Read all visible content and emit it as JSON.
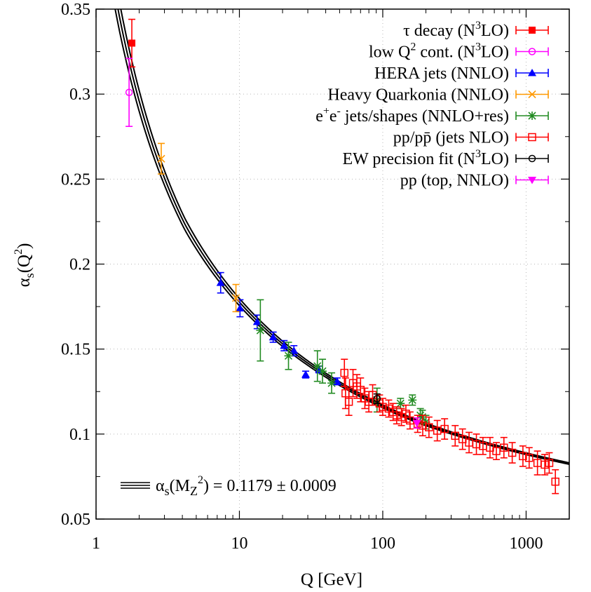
{
  "chart_data": {
    "type": "scatter",
    "title": "",
    "xlabel": "Q [GeV]",
    "ylabel": "αs(Q²)",
    "ylabel_parts": {
      "alpha": "α",
      "sub": "s",
      "arg": "(Q",
      "sup": "2",
      "close": ")"
    },
    "xscale": "log",
    "xlim": [
      1,
      2000
    ],
    "ylim": [
      0.05,
      0.35
    ],
    "grid": true,
    "legend_position": "top-right",
    "x_ticks": [
      1,
      10,
      100,
      1000
    ],
    "x_tick_labels": [
      "1",
      "10",
      "100",
      "1000"
    ],
    "y_ticks": [
      0.05,
      0.1,
      0.15,
      0.2,
      0.25,
      0.3,
      0.35
    ],
    "y_tick_labels": [
      "0.05",
      "0.1",
      "0.15",
      "0.2",
      "0.25",
      "0.3",
      "0.35"
    ],
    "legend_labels": [
      "τ decay (N3LO)",
      "low Q2 cont. (N3LO)",
      "HERA jets (NNLO)",
      "Heavy Quarkonia (NNLO)",
      "e+e- jets/shapes (NNLO+res)",
      "pp/pp̄ (jets NLO)",
      "EW precision fit (N3LO)",
      "pp (top, NNLO)"
    ],
    "fit_annotation": "αs(MZ2) = 0.1179 ± 0.0009",
    "fit_label_parts": {
      "alpha": "α",
      "sub": "s",
      "open": "(M",
      "zsub": "Z",
      "sup": "2",
      "rest": ") = 0.1179 ± 0.0009"
    },
    "fit": {
      "alpha_s_mz": 0.1179,
      "uncertainty": 0.0009,
      "mz": 91.1876
    },
    "series": [
      {
        "name": "τ decay (N3LO)",
        "color": "#ff0000",
        "marker": "filled-square",
        "points": [
          {
            "x": 1.777,
            "y": 0.33,
            "e": 0.014
          }
        ]
      },
      {
        "name": "low Q2 cont. (N3LO)",
        "color": "#ff00ff",
        "marker": "open-circle",
        "points": [
          {
            "x": 1.7,
            "y": 0.301,
            "e": 0.02
          }
        ]
      },
      {
        "name": "HERA jets (NNLO)",
        "color": "#0000ff",
        "marker": "filled-triangle",
        "points": [
          {
            "x": 7.4,
            "y": 0.189,
            "e": 0.006
          },
          {
            "x": 10.1,
            "y": 0.174,
            "e": 0.005
          },
          {
            "x": 13.3,
            "y": 0.166,
            "e": 0.004
          },
          {
            "x": 17.2,
            "y": 0.157,
            "e": 0.003
          },
          {
            "x": 20.5,
            "y": 0.152,
            "e": 0.003
          },
          {
            "x": 24.0,
            "y": 0.149,
            "e": 0.003
          },
          {
            "x": 29.0,
            "y": 0.135,
            "e": 0.002
          },
          {
            "x": 36.0,
            "y": 0.138,
            "e": 0.002
          },
          {
            "x": 48.0,
            "y": 0.131,
            "e": 0.002
          }
        ]
      },
      {
        "name": "Heavy Quarkonia (NNLO)",
        "color": "#ff9900",
        "marker": "cross",
        "points": [
          {
            "x": 2.85,
            "y": 0.262,
            "e": 0.009
          },
          {
            "x": 9.46,
            "y": 0.18,
            "e": 0.008
          }
        ]
      },
      {
        "name": "e+e- jets/shapes (NNLO+res)",
        "color": "#228b22",
        "marker": "star",
        "points": [
          {
            "x": 14.0,
            "y": 0.161,
            "e": 0.018
          },
          {
            "x": 22.0,
            "y": 0.146,
            "e": 0.008
          },
          {
            "x": 35.0,
            "y": 0.14,
            "e": 0.009
          },
          {
            "x": 38.0,
            "y": 0.137,
            "e": 0.007
          },
          {
            "x": 44.0,
            "y": 0.13,
            "e": 0.006
          },
          {
            "x": 91.2,
            "y": 0.12,
            "e": 0.007
          },
          {
            "x": 133.0,
            "y": 0.118,
            "e": 0.003
          },
          {
            "x": 161.0,
            "y": 0.12,
            "e": 0.003
          },
          {
            "x": 183.0,
            "y": 0.111,
            "e": 0.004
          },
          {
            "x": 189.0,
            "y": 0.11,
            "e": 0.004
          },
          {
            "x": 200.0,
            "y": 0.107,
            "e": 0.004
          }
        ]
      },
      {
        "name": "pp/pp̄ (jets NLO)",
        "color": "#ff0000",
        "marker": "open-square",
        "points": [
          {
            "x": 54,
            "y": 0.136,
            "e": 0.008
          },
          {
            "x": 55,
            "y": 0.124,
            "e": 0.009
          },
          {
            "x": 58,
            "y": 0.119,
            "e": 0.008
          },
          {
            "x": 62,
            "y": 0.13,
            "e": 0.008
          },
          {
            "x": 66,
            "y": 0.128,
            "e": 0.007
          },
          {
            "x": 70,
            "y": 0.126,
            "e": 0.007
          },
          {
            "x": 75,
            "y": 0.121,
            "e": 0.006
          },
          {
            "x": 80,
            "y": 0.119,
            "e": 0.006
          },
          {
            "x": 85,
            "y": 0.123,
            "e": 0.006
          },
          {
            "x": 95,
            "y": 0.118,
            "e": 0.005
          },
          {
            "x": 100,
            "y": 0.116,
            "e": 0.005
          },
          {
            "x": 110,
            "y": 0.115,
            "e": 0.005
          },
          {
            "x": 118,
            "y": 0.113,
            "e": 0.005
          },
          {
            "x": 125,
            "y": 0.111,
            "e": 0.005
          },
          {
            "x": 135,
            "y": 0.11,
            "e": 0.005
          },
          {
            "x": 145,
            "y": 0.112,
            "e": 0.005
          },
          {
            "x": 155,
            "y": 0.108,
            "e": 0.005
          },
          {
            "x": 175,
            "y": 0.106,
            "e": 0.005
          },
          {
            "x": 190,
            "y": 0.105,
            "e": 0.006
          },
          {
            "x": 210,
            "y": 0.104,
            "e": 0.006
          },
          {
            "x": 240,
            "y": 0.102,
            "e": 0.006
          },
          {
            "x": 270,
            "y": 0.103,
            "e": 0.006
          },
          {
            "x": 320,
            "y": 0.099,
            "e": 0.006
          },
          {
            "x": 360,
            "y": 0.097,
            "e": 0.006
          },
          {
            "x": 400,
            "y": 0.095,
            "e": 0.006
          },
          {
            "x": 450,
            "y": 0.094,
            "e": 0.006
          },
          {
            "x": 500,
            "y": 0.093,
            "e": 0.005
          },
          {
            "x": 560,
            "y": 0.092,
            "e": 0.006
          },
          {
            "x": 620,
            "y": 0.09,
            "e": 0.005
          },
          {
            "x": 700,
            "y": 0.092,
            "e": 0.006
          },
          {
            "x": 800,
            "y": 0.089,
            "e": 0.006
          },
          {
            "x": 950,
            "y": 0.087,
            "e": 0.006
          },
          {
            "x": 1050,
            "y": 0.086,
            "e": 0.006
          },
          {
            "x": 1200,
            "y": 0.083,
            "e": 0.007
          },
          {
            "x": 1350,
            "y": 0.082,
            "e": 0.006
          },
          {
            "x": 1450,
            "y": 0.083,
            "e": 0.006
          },
          {
            "x": 1600,
            "y": 0.072,
            "e": 0.007
          }
        ]
      },
      {
        "name": "EW precision fit (N3LO)",
        "color": "#000000",
        "marker": "open-circle",
        "points": [
          {
            "x": 91.19,
            "y": 0.1208,
            "e": 0.0028
          }
        ]
      },
      {
        "name": "pp (top, NNLO)",
        "color": "#ff00ff",
        "marker": "filled-down-triangle",
        "points": [
          {
            "x": 173.0,
            "y": 0.1065,
            "e": 0.003
          }
        ]
      }
    ]
  }
}
